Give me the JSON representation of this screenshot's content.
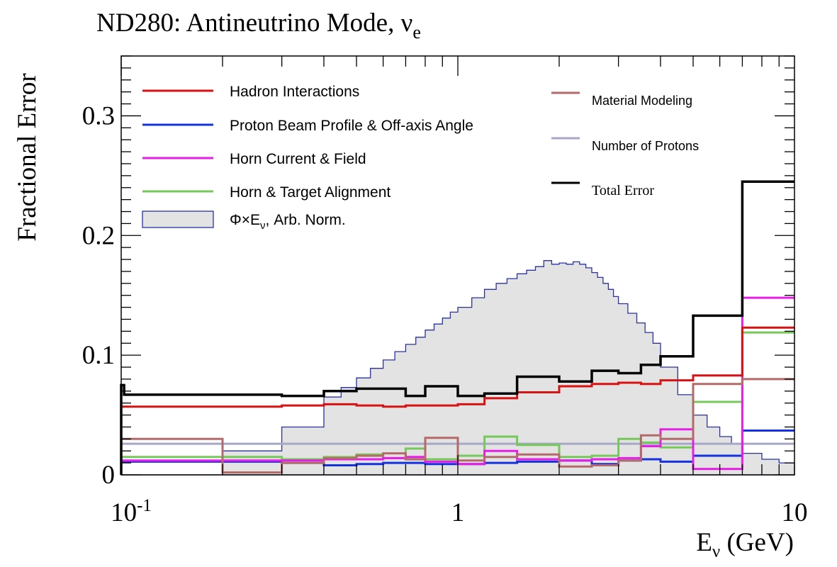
{
  "chart_data": {
    "type": "line",
    "title": "ND280: Antineutrino Mode, ν",
    "title_sub": "e",
    "xlabel": "E",
    "xlabel_sub": "ν",
    "xlabel_unit": " (GeV)",
    "ylabel": "Fractional Error",
    "xscale": "log",
    "xlim": [
      0.1,
      10
    ],
    "ylim": [
      0,
      0.35
    ],
    "x_ticks": [
      {
        "value": 0.1,
        "label": "10",
        "sup": "-1"
      },
      {
        "value": 1,
        "label": "1",
        "sup": ""
      },
      {
        "value": 10,
        "label": "10",
        "sup": ""
      }
    ],
    "y_ticks": [
      {
        "value": 0,
        "label": "0"
      },
      {
        "value": 0.1,
        "label": "0.1"
      },
      {
        "value": 0.2,
        "label": "0.2"
      },
      {
        "value": 0.3,
        "label": "0.3"
      }
    ],
    "bin_edges": [
      0.1,
      0.2,
      0.3,
      0.4,
      0.5,
      0.6,
      0.7,
      0.8,
      1.0,
      1.2,
      1.5,
      2.0,
      2.5,
      3.0,
      3.5,
      4.0,
      5.0,
      7.0,
      10.0
    ],
    "flux": {
      "label": "Φ×E",
      "label_sub": "ν",
      "label_rest": ", Arb. Norm.",
      "fill": "#e3e3e3",
      "stroke": "#2a32a0",
      "bin_edges": [
        0.1,
        0.2,
        0.3,
        0.4,
        0.45,
        0.5,
        0.55,
        0.6,
        0.65,
        0.7,
        0.75,
        0.8,
        0.85,
        0.9,
        0.95,
        1.0,
        1.1,
        1.2,
        1.3,
        1.4,
        1.5,
        1.6,
        1.7,
        1.8,
        1.9,
        2.0,
        2.1,
        2.2,
        2.3,
        2.4,
        2.5,
        2.6,
        2.7,
        2.8,
        2.9,
        3.0,
        3.2,
        3.4,
        3.6,
        3.8,
        4.0,
        4.5,
        5.0,
        5.5,
        6.0,
        6.5,
        7.0,
        8.0,
        9.0,
        10.0
      ],
      "values": [
        0.0,
        0.02,
        0.04,
        0.065,
        0.073,
        0.081,
        0.089,
        0.096,
        0.103,
        0.109,
        0.115,
        0.121,
        0.126,
        0.131,
        0.136,
        0.14,
        0.148,
        0.155,
        0.16,
        0.164,
        0.168,
        0.171,
        0.174,
        0.179,
        0.176,
        0.177,
        0.176,
        0.178,
        0.176,
        0.173,
        0.169,
        0.165,
        0.16,
        0.155,
        0.149,
        0.143,
        0.135,
        0.127,
        0.119,
        0.11,
        0.09,
        0.067,
        0.05,
        0.04,
        0.032,
        0.026,
        0.018,
        0.013,
        0.01
      ]
    },
    "series": [
      {
        "name": "Hadron Interactions",
        "color": "#d81212",
        "width": 3,
        "values": [
          0.057,
          0.057,
          0.058,
          0.059,
          0.058,
          0.057,
          0.058,
          0.058,
          0.059,
          0.064,
          0.069,
          0.074,
          0.076,
          0.077,
          0.076,
          0.079,
          0.083,
          0.123
        ]
      },
      {
        "name": "Proton Beam Profile & Off-axis Angle",
        "color": "#1532e0",
        "width": 3,
        "values": [
          0.011,
          0.011,
          0.01,
          0.008,
          0.009,
          0.01,
          0.01,
          0.009,
          0.009,
          0.01,
          0.011,
          0.012,
          0.009,
          0.012,
          0.013,
          0.011,
          0.016,
          0.037
        ]
      },
      {
        "name": "Horn Current & Field",
        "color": "#e61ee6",
        "width": 3,
        "values": [
          0.012,
          0.012,
          0.012,
          0.013,
          0.013,
          0.014,
          0.015,
          0.011,
          0.009,
          0.02,
          0.013,
          0.012,
          0.013,
          0.014,
          0.024,
          0.038,
          0.005,
          0.148
        ]
      },
      {
        "name": "Horn & Target Alignment",
        "color": "#77c85a",
        "width": 3,
        "values": [
          0.015,
          0.015,
          0.013,
          0.015,
          0.017,
          0.014,
          0.022,
          0.013,
          0.016,
          0.032,
          0.025,
          0.015,
          0.016,
          0.03,
          0.027,
          0.023,
          0.061,
          0.119
        ]
      },
      {
        "name": "Material Modeling",
        "color": "#b56a6a",
        "width": 3,
        "values": [
          0.03,
          0.002,
          0.01,
          0.014,
          0.016,
          0.018,
          0.013,
          0.031,
          0.012,
          0.015,
          0.017,
          0.007,
          0.008,
          0.012,
          0.033,
          0.03,
          0.076,
          0.08
        ]
      },
      {
        "name": "Number of Protons",
        "color": "#a7a7c8",
        "width": 3,
        "values": [
          0.026,
          0.026,
          0.026,
          0.026,
          0.026,
          0.026,
          0.026,
          0.026,
          0.026,
          0.026,
          0.026,
          0.026,
          0.026,
          0.026,
          0.026,
          0.026,
          0.026,
          0.026
        ]
      },
      {
        "name": "Total Error",
        "color": "#000000",
        "width": 3.5,
        "first_bin_split": {
          "edge": 0.102,
          "value": 0.075
        },
        "values": [
          0.067,
          0.067,
          0.066,
          0.07,
          0.072,
          0.072,
          0.066,
          0.074,
          0.066,
          0.068,
          0.082,
          0.078,
          0.087,
          0.085,
          0.092,
          0.099,
          0.133,
          0.245
        ]
      }
    ],
    "legend": {
      "left": [
        "Hadron Interactions",
        "Proton Beam Profile & Off-axis Angle",
        "Horn Current & Field",
        "Horn & Target Alignment"
      ],
      "right": [
        "Material Modeling",
        "Number of Protons",
        "Total Error"
      ],
      "placement": "top"
    },
    "grid": false
  }
}
